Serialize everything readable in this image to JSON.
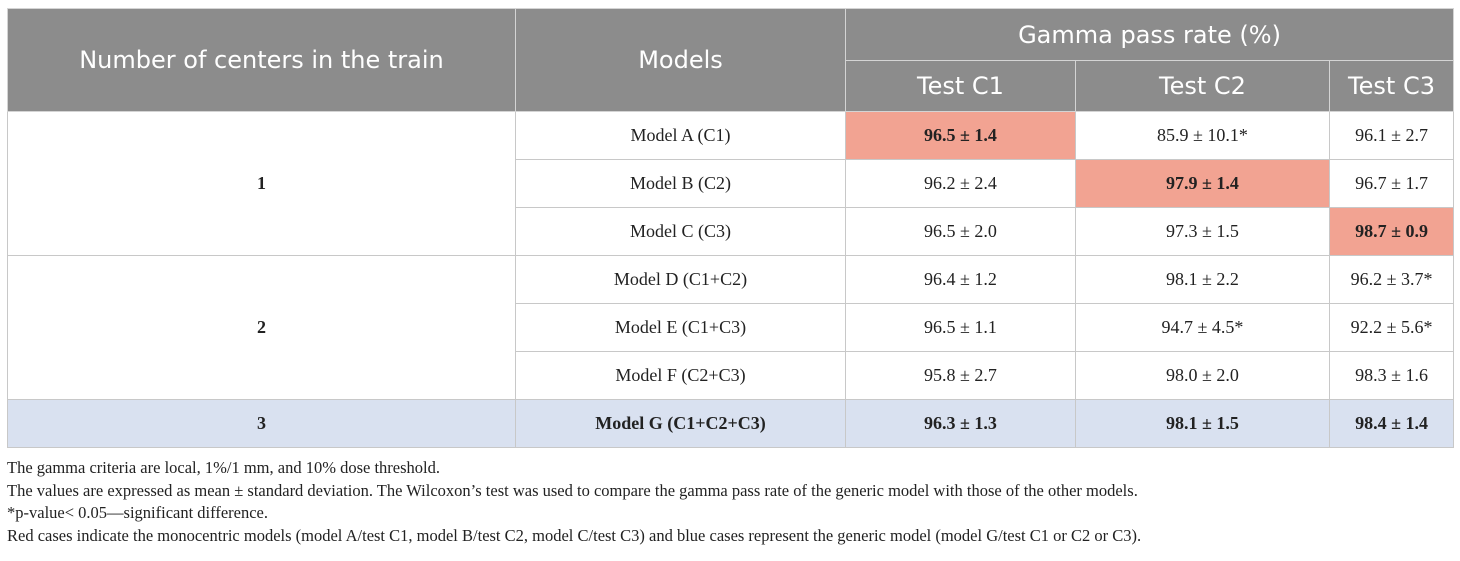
{
  "table": {
    "headers": {
      "centers": "Number of centers in the train",
      "models": "Models",
      "gamma": "Gamma pass rate (%)",
      "tests": [
        "Test C1",
        "Test C2",
        "Test C3"
      ]
    },
    "groups": [
      {
        "label": "1",
        "rows": [
          {
            "model": "Model A (C1)",
            "c1": "96.5 ± 1.4",
            "c2": "85.9 ± 10.1*",
            "c3": "96.1 ± 2.7"
          },
          {
            "model": "Model B (C2)",
            "c1": "96.2 ± 2.4",
            "c2": "97.9 ± 1.4",
            "c3": "96.7 ± 1.7"
          },
          {
            "model": "Model C (C3)",
            "c1": "96.5 ± 2.0",
            "c2": "97.3 ± 1.5",
            "c3": "98.7 ± 0.9"
          }
        ]
      },
      {
        "label": "2",
        "rows": [
          {
            "model": "Model D (C1+C2)",
            "c1": "96.4 ± 1.2",
            "c2": "98.1 ± 2.2",
            "c3": "96.2 ± 3.7*"
          },
          {
            "model": "Model E (C1+C3)",
            "c1": "96.5 ± 1.1",
            "c2": "94.7 ± 4.5*",
            "c3": "92.2 ± 5.6*"
          },
          {
            "model": "Model F (C2+C3)",
            "c1": "95.8 ± 2.7",
            "c2": "98.0 ± 2.0",
            "c3": "98.3 ± 1.6"
          }
        ]
      },
      {
        "label": "3",
        "rows": [
          {
            "model": "Model G (C1+C2+C3)",
            "c1": "96.3 ± 1.3",
            "c2": "98.1 ± 1.5",
            "c3": "98.4 ± 1.4"
          }
        ]
      }
    ]
  },
  "colors": {
    "header_bg": "#8c8c8c",
    "red_highlight": "#f2a392",
    "blue_highlight": "#d9e1f0"
  },
  "notes": [
    "The gamma criteria are local, 1%/1 mm, and 10% dose threshold.",
    "The values are expressed as mean ± standard deviation. The Wilcoxon’s test was used to compare the gamma pass rate of the generic model with those of the other models.",
    "*p-value< 0.05—significant difference.",
    "Red cases indicate the monocentric models (model A/test C1, model B/test C2, model C/test C3) and blue cases represent the generic model (model G/test C1 or C2 or C3)."
  ]
}
